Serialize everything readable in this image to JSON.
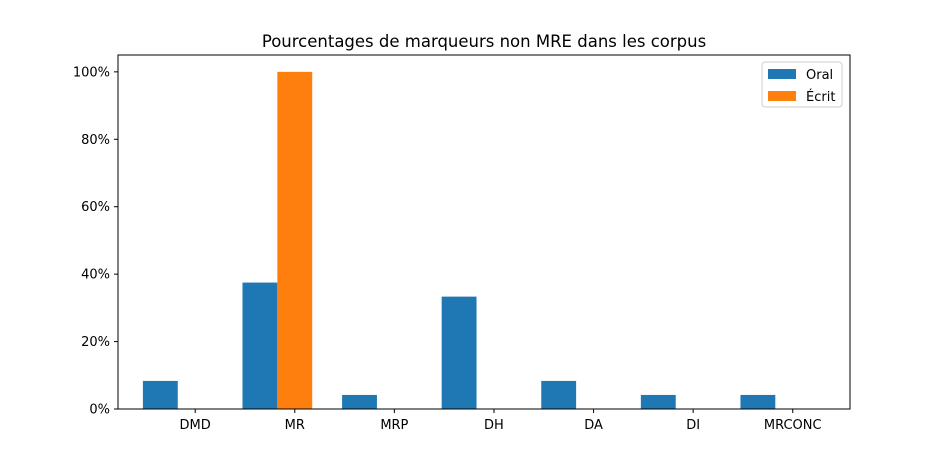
{
  "chart_data": {
    "type": "bar",
    "title": "Pourcentages de marqueurs non MRE dans les corpus",
    "xlabel": "",
    "ylabel": "",
    "categories": [
      "DMD",
      "MR",
      "MRP",
      "DH",
      "DA",
      "DI",
      "MRCONC"
    ],
    "series": [
      {
        "name": "Oral",
        "color": "#1f77b4",
        "values": [
          8.33,
          37.5,
          4.17,
          33.33,
          8.33,
          4.17,
          4.17
        ]
      },
      {
        "name": "Écrit",
        "color": "#ff7f0e",
        "values": [
          0,
          100,
          0,
          0,
          0,
          0,
          0
        ]
      }
    ],
    "ylim": [
      0,
      105
    ],
    "yticks": [
      0,
      20,
      40,
      60,
      80,
      100
    ],
    "ytick_labels": [
      "0%",
      "20%",
      "40%",
      "60%",
      "80%",
      "100%"
    ],
    "grid": false,
    "legend_position": "top-right"
  }
}
